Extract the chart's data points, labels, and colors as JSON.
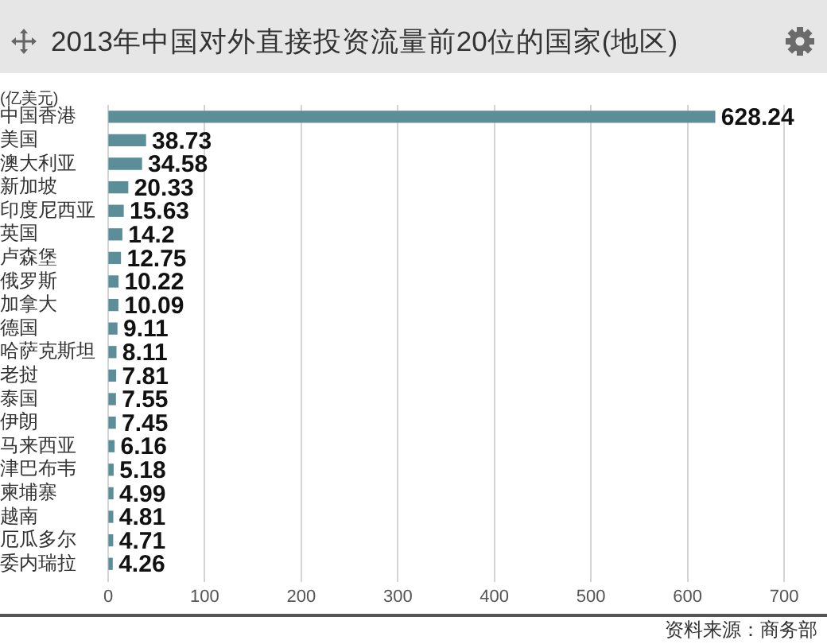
{
  "chart_data": {
    "type": "bar",
    "orientation": "horizontal",
    "title": "2013年中国对外直接投资流量前20位的国家(地区)",
    "xlabel": "(亿美元)",
    "categories": [
      "中国香港",
      "美国",
      "澳大利亚",
      "新加坡",
      "印度尼西亚",
      "英国",
      "卢森堡",
      "俄罗斯",
      "加拿大",
      "德国",
      "哈萨克斯坦",
      "老挝",
      "泰国",
      "伊朗",
      "马来西亚",
      "津巴布韦",
      "柬埔寨",
      "越南",
      "厄瓜多尔",
      "委内瑞拉"
    ],
    "values": [
      628.24,
      38.73,
      34.58,
      20.33,
      15.63,
      14.2,
      12.75,
      10.22,
      10.09,
      9.11,
      8.11,
      7.81,
      7.55,
      7.45,
      6.16,
      5.18,
      4.99,
      4.81,
      4.71,
      4.26
    ],
    "color": "#5b8e98",
    "xlim": [
      0,
      700
    ],
    "xticks": [
      0,
      100,
      200,
      300,
      400,
      500,
      600,
      700
    ],
    "grid": "x",
    "data_labels": true,
    "annotations": [
      "资料来源：商务部"
    ]
  }
}
